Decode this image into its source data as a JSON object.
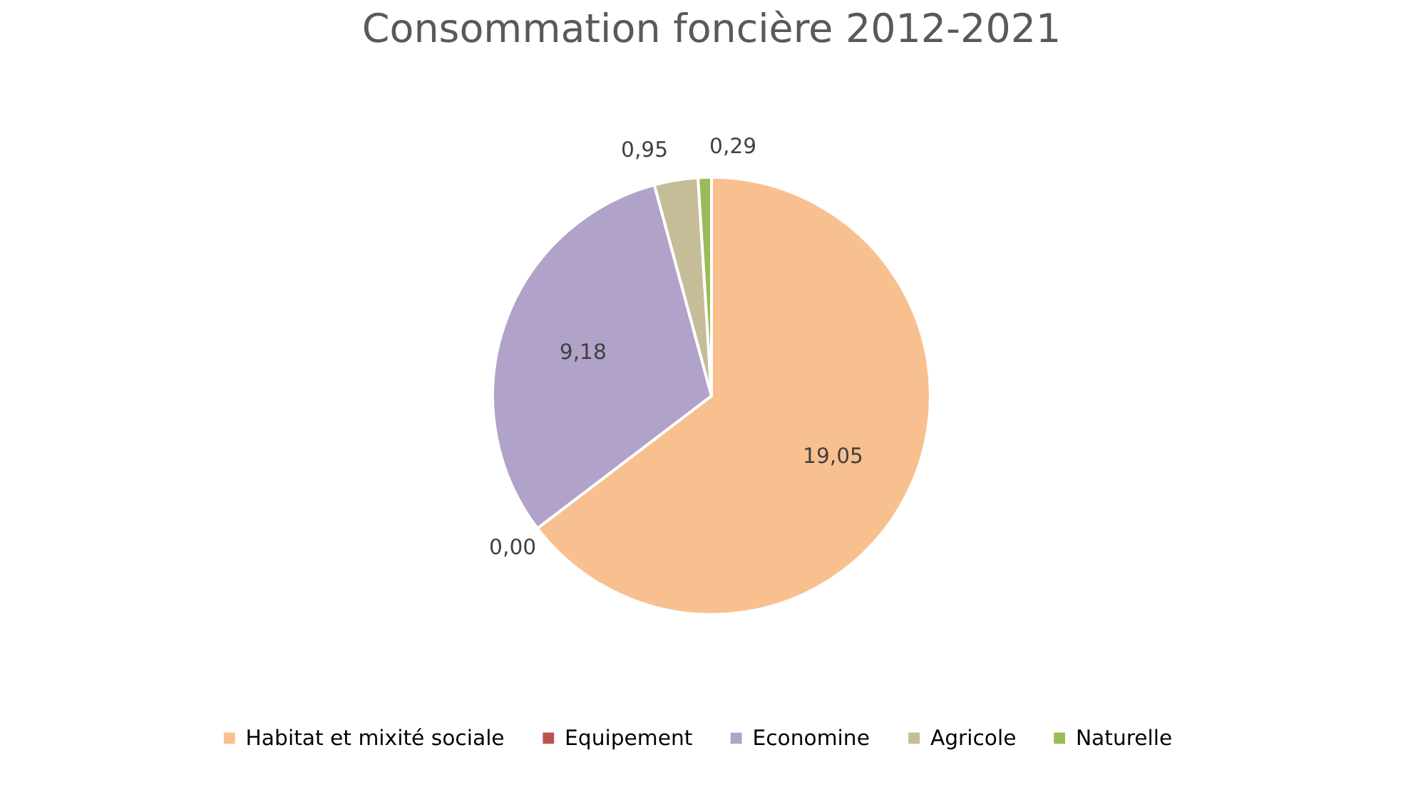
{
  "chart_data": {
    "type": "pie",
    "title": "Consommation foncière 2012-2021",
    "categories": [
      "Habitat et mixité sociale",
      "Equipement",
      "Economine",
      "Agricole",
      "Naturelle"
    ],
    "values": [
      19.05,
      0.0,
      9.18,
      0.95,
      0.29
    ],
    "value_labels": [
      "19,05",
      "0,00",
      "9,18",
      "0,95",
      "0,29"
    ],
    "colors": [
      "#f9c08f",
      "#c0504d",
      "#b1a2c9",
      "#c4bd97",
      "#9bbb59"
    ],
    "legend": "bottom"
  }
}
